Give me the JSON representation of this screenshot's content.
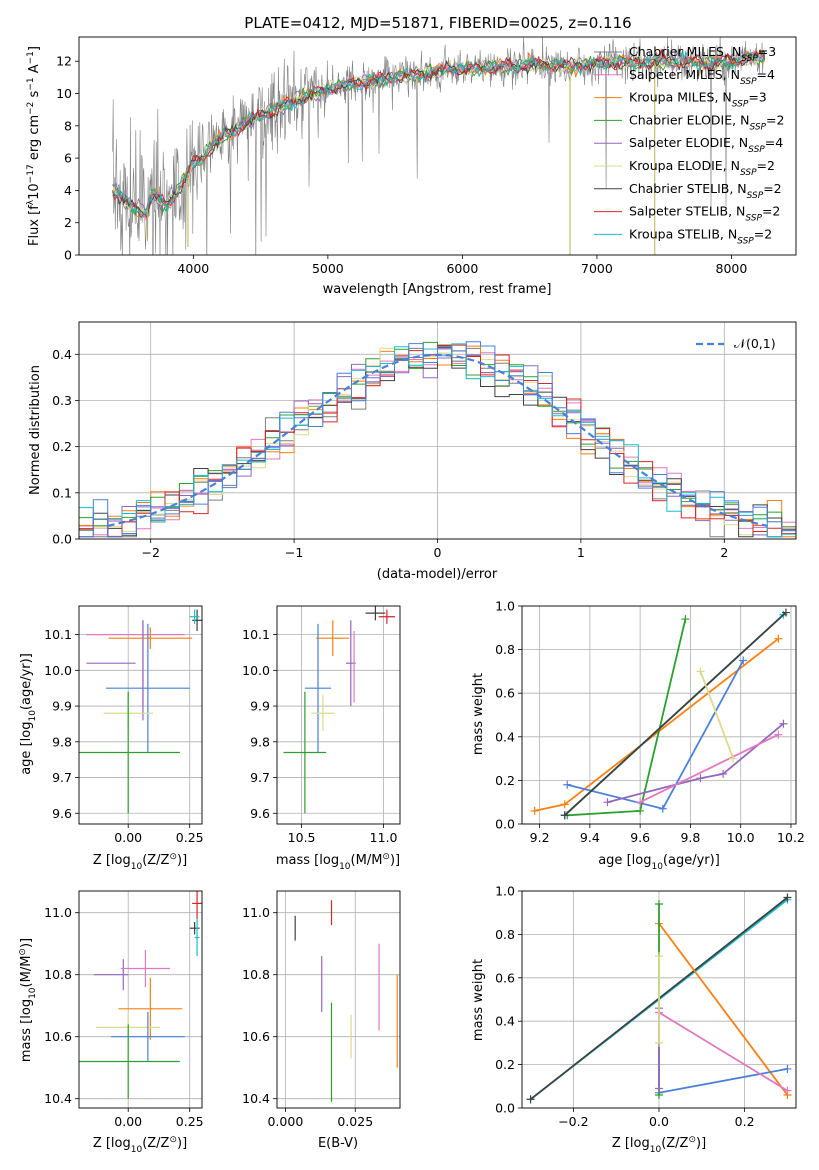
{
  "chart_data": [
    {
      "id": "spectrum",
      "type": "line",
      "title": "PLATE=0412, MJD=51871, FIBERID=0025, z=0.116",
      "xlabel": "wavelength [Angstrom, rest frame]",
      "ylabel_parts": [
        "Flux [f",
        "λ",
        "10",
        "−17",
        " erg cm",
        "−2",
        " s",
        "−1",
        " A",
        "−1",
        "]"
      ],
      "xlim": [
        3150,
        8480
      ],
      "ylim": [
        0,
        13.5
      ],
      "xticks": [
        4000,
        5000,
        6000,
        7000,
        8000
      ],
      "yticks": [
        0,
        2,
        4,
        6,
        8,
        10,
        12
      ],
      "grid": false,
      "legend_position": "right",
      "observed_color": "#808080",
      "series": [
        {
          "name": "Chabrier MILES",
          "n_ssp": 3,
          "color": "#7f7f7f"
        },
        {
          "name": "Salpeter MILES",
          "n_ssp": 4,
          "color": "#e377c2"
        },
        {
          "name": "Kroupa MILES",
          "n_ssp": 3,
          "color": "#ff7f0e"
        },
        {
          "name": "Chabrier ELODIE",
          "n_ssp": 2,
          "color": "#2ca02c"
        },
        {
          "name": "Salpeter ELODIE",
          "n_ssp": 4,
          "color": "#9467bd"
        },
        {
          "name": "Kroupa ELODIE",
          "n_ssp": 2,
          "color": "#dbdb8d"
        },
        {
          "name": "Chabrier STELIB",
          "n_ssp": 2,
          "color": "#404040"
        },
        {
          "name": "Salpeter STELIB",
          "n_ssp": 2,
          "color": "#d62728"
        },
        {
          "name": "Kroupa STELIB",
          "n_ssp": 2,
          "color": "#17becf"
        }
      ],
      "continuum_points": [
        [
          3400,
          4.0
        ],
        [
          3550,
          3.0
        ],
        [
          3650,
          2.6
        ],
        [
          3700,
          3.8
        ],
        [
          3800,
          3.0
        ],
        [
          3900,
          4.2
        ],
        [
          4000,
          5.6
        ],
        [
          4200,
          7.2
        ],
        [
          4500,
          8.7
        ],
        [
          4800,
          9.7
        ],
        [
          5000,
          10.3
        ],
        [
          5300,
          10.8
        ],
        [
          5600,
          11.1
        ],
        [
          5900,
          11.5
        ],
        [
          6200,
          11.6
        ],
        [
          6500,
          11.8
        ],
        [
          6800,
          11.7
        ],
        [
          7100,
          11.9
        ],
        [
          7500,
          12.0
        ],
        [
          7900,
          11.9
        ],
        [
          8250,
          12.3
        ]
      ],
      "spectrum_end": 8250
    },
    {
      "id": "residuals",
      "type": "histogram",
      "xlabel": "(data-model)/error",
      "ylabel": "Normed distribution",
      "xlim": [
        -2.5,
        2.5
      ],
      "ylim": [
        0,
        0.47
      ],
      "xticks": [
        -2,
        -1,
        0,
        1,
        2
      ],
      "yticks": [
        0.0,
        0.1,
        0.2,
        0.3,
        0.4
      ],
      "grid": true,
      "legend": [
        {
          "label": "𝒩(0,1)",
          "color": "#4a80d9",
          "style": "dashed"
        }
      ],
      "legend_position": "top-right",
      "bin_width": 0.1,
      "gaussian": {
        "mean": 0,
        "sigma": 1
      }
    },
    {
      "id": "age_vs_Z",
      "type": "errorbar",
      "xlabel_parts": [
        "Z [log",
        "10",
        "(Z/Z",
        "⊙",
        ")]"
      ],
      "ylabel_parts": [
        "age  [log",
        "10",
        "(age/yr)]"
      ],
      "xlim": [
        -0.2,
        0.3
      ],
      "ylim": [
        9.57,
        10.18
      ],
      "xticks": [
        0.0,
        0.25
      ],
      "yticks": [
        9.6,
        9.7,
        9.8,
        9.9,
        10.0,
        10.1
      ],
      "grid": true,
      "points": [
        {
          "x": 0.28,
          "xerr": 0.02,
          "y": 10.14,
          "yerr": 0.03,
          "color": "#404040"
        },
        {
          "x": 0.27,
          "xerr": 0.02,
          "y": 10.15,
          "yerr": 0.02,
          "color": "#17becf"
        },
        {
          "x": 0.03,
          "xerr": 0.2,
          "y": 10.1,
          "yerr": 0.0,
          "color": "#e377c2"
        },
        {
          "x": 0.09,
          "xerr": 0.17,
          "y": 10.09,
          "yerr": 0.03,
          "color": "#ff7f0e"
        },
        {
          "x": 0.06,
          "xerr": 0.0,
          "y": 10.02,
          "yerr": 0.12,
          "color": "#e377c2"
        },
        {
          "x": 0.06,
          "xerr": 0.0,
          "y": 10.0,
          "yerr": 0.14,
          "color": "#9467bd"
        },
        {
          "x": -0.07,
          "xerr": 0.1,
          "y": 10.02,
          "yerr": 0.0,
          "color": "#9467bd"
        },
        {
          "x": 0.08,
          "xerr": 0.17,
          "y": 9.95,
          "yerr": 0.18,
          "color": "#4a80d9"
        },
        {
          "x": 0.0,
          "xerr": 0.1,
          "y": 9.88,
          "yerr": 0.06,
          "color": "#dbdb8d"
        },
        {
          "x": 0.0,
          "xerr": 0.21,
          "y": 9.77,
          "yerr": 0.17,
          "color": "#2ca02c"
        }
      ]
    },
    {
      "id": "age_vs_mass",
      "type": "errorbar",
      "xlabel_parts": [
        "mass [log",
        "10",
        "(M/M",
        "⊙",
        ")]"
      ],
      "xlim": [
        10.35,
        11.1
      ],
      "ylim": [
        9.57,
        10.18
      ],
      "xticks": [
        10.5,
        11.0
      ],
      "yticks": [
        9.6,
        9.7,
        9.8,
        9.9,
        10.0,
        10.1
      ],
      "grid": true,
      "points": [
        {
          "x": 10.95,
          "xerr": 0.06,
          "y": 10.16,
          "yerr": 0.02,
          "color": "#404040"
        },
        {
          "x": 11.02,
          "xerr": 0.05,
          "y": 10.15,
          "yerr": 0.02,
          "color": "#d62728"
        },
        {
          "x": 10.69,
          "xerr": 0.1,
          "y": 10.09,
          "yerr": 0.05,
          "color": "#ff7f0e"
        },
        {
          "x": 10.8,
          "xerr": 0.03,
          "y": 10.02,
          "yerr": 0.12,
          "color": "#9467bd"
        },
        {
          "x": 10.82,
          "xerr": 0.0,
          "y": 10.01,
          "yerr": 0.1,
          "color": "#e377c2"
        },
        {
          "x": 10.6,
          "xerr": 0.08,
          "y": 9.95,
          "yerr": 0.18,
          "color": "#4a80d9"
        },
        {
          "x": 10.63,
          "xerr": 0.07,
          "y": 9.88,
          "yerr": 0.05,
          "color": "#dbdb8d"
        },
        {
          "x": 10.52,
          "xerr": 0.13,
          "y": 9.77,
          "yerr": 0.17,
          "color": "#2ca02c"
        }
      ]
    },
    {
      "id": "weight_vs_age",
      "type": "line",
      "xlabel_parts": [
        "age  [log",
        "10",
        "(age/yr)]"
      ],
      "ylabel": "mass weight",
      "xlim": [
        9.13,
        10.22
      ],
      "ylim": [
        0,
        1.0
      ],
      "xticks": [
        9.2,
        9.4,
        9.6,
        9.8,
        10.0,
        10.2
      ],
      "yticks": [
        0.0,
        0.2,
        0.4,
        0.6,
        0.8,
        1.0
      ],
      "grid": true,
      "series": [
        {
          "color": "#ff7f0e",
          "points": [
            [
              9.18,
              0.06
            ],
            [
              9.3,
              0.09
            ],
            [
              10.15,
              0.85
            ]
          ]
        },
        {
          "color": "#4a80d9",
          "points": [
            [
              9.31,
              0.18
            ],
            [
              9.69,
              0.07
            ],
            [
              10.01,
              0.75
            ]
          ]
        },
        {
          "color": "#2ca02c",
          "points": [
            [
              9.31,
              0.04
            ],
            [
              9.6,
              0.06
            ],
            [
              9.78,
              0.94
            ]
          ]
        },
        {
          "color": "#17becf",
          "points": [
            [
              9.3,
              0.04
            ],
            [
              10.17,
              0.96
            ]
          ]
        },
        {
          "color": "#404040",
          "points": [
            [
              9.3,
              0.04
            ],
            [
              10.18,
              0.97
            ]
          ]
        },
        {
          "color": "#9467bd",
          "points": [
            [
              9.47,
              0.1
            ],
            [
              9.84,
              0.21
            ],
            [
              9.93,
              0.23
            ],
            [
              10.17,
              0.46
            ]
          ]
        },
        {
          "color": "#e377c2",
          "points": [
            [
              9.6,
              0.1
            ],
            [
              10.15,
              0.41
            ]
          ]
        },
        {
          "color": "#dbdb8d",
          "points": [
            [
              9.84,
              0.7
            ],
            [
              9.97,
              0.3
            ]
          ]
        }
      ]
    },
    {
      "id": "mass_vs_Z",
      "type": "errorbar",
      "xlabel_parts": [
        "Z [log",
        "10",
        "(Z/Z",
        "⊙",
        ")]"
      ],
      "ylabel_parts": [
        "mass [log",
        "10",
        "(M/M",
        "⊙",
        ")]"
      ],
      "xlim": [
        -0.2,
        0.3
      ],
      "ylim": [
        10.37,
        11.07
      ],
      "xticks": [
        0.0,
        0.25
      ],
      "yticks": [
        10.4,
        10.6,
        10.8,
        11.0
      ],
      "grid": true,
      "points": [
        {
          "x": 0.28,
          "xerr": 0.02,
          "y": 11.03,
          "yerr": 0.05,
          "color": "#d62728"
        },
        {
          "x": 0.27,
          "xerr": 0.02,
          "y": 10.95,
          "yerr": 0.02,
          "color": "#404040"
        },
        {
          "x": 0.28,
          "xerr": 0.01,
          "y": 10.92,
          "yerr": 0.06,
          "color": "#17becf"
        },
        {
          "x": -0.02,
          "xerr": 0.0,
          "y": 10.8,
          "yerr": 0.05,
          "color": "#9467bd"
        },
        {
          "x": -0.07,
          "xerr": 0.07,
          "y": 10.8,
          "yerr": 0.0,
          "color": "#9467bd"
        },
        {
          "x": 0.07,
          "xerr": 0.1,
          "y": 10.82,
          "yerr": 0.06,
          "color": "#e377c2"
        },
        {
          "x": 0.09,
          "xerr": 0.13,
          "y": 10.69,
          "yerr": 0.1,
          "color": "#ff7f0e"
        },
        {
          "x": 0.0,
          "xerr": 0.13,
          "y": 10.63,
          "yerr": 0.05,
          "color": "#dbdb8d"
        },
        {
          "x": 0.08,
          "xerr": 0.15,
          "y": 10.6,
          "yerr": 0.08,
          "color": "#4a80d9"
        },
        {
          "x": 0.0,
          "xerr": 0.21,
          "y": 10.52,
          "yerr": 0.12,
          "color": "#2ca02c"
        }
      ]
    },
    {
      "id": "mass_vs_EBV",
      "type": "errorbar",
      "xlabel": "E(B-V)",
      "xlim": [
        -0.003,
        0.041
      ],
      "ylim": [
        10.37,
        11.07
      ],
      "xticks": [
        0.0,
        0.025
      ],
      "yticks": [
        10.4,
        10.6,
        10.8,
        11.0
      ],
      "grid": true,
      "points": [
        {
          "x": 0.0165,
          "xerr": 0.0,
          "y": 11.0,
          "yerr": 0.04,
          "color": "#d62728"
        },
        {
          "x": 0.0035,
          "xerr": 0.0,
          "y": 10.95,
          "yerr": 0.04,
          "color": "#404040"
        },
        {
          "x": 0.013,
          "xerr": 0.0,
          "y": 10.77,
          "yerr": 0.09,
          "color": "#9467bd"
        },
        {
          "x": 0.0335,
          "xerr": 0.0,
          "y": 10.76,
          "yerr": 0.14,
          "color": "#e377c2"
        },
        {
          "x": 0.0235,
          "xerr": 0.0,
          "y": 10.6,
          "yerr": 0.07,
          "color": "#dbdb8d"
        },
        {
          "x": 0.0165,
          "xerr": 0.0,
          "y": 10.55,
          "yerr": 0.16,
          "color": "#2ca02c"
        },
        {
          "x": 0.04,
          "xerr": 0.0,
          "y": 10.65,
          "yerr": 0.15,
          "color": "#ff7f0e"
        }
      ]
    },
    {
      "id": "weight_vs_Z",
      "type": "line",
      "xlabel_parts": [
        "Z [log",
        "10",
        "(Z/Z",
        "⊙",
        ")]"
      ],
      "ylabel": "mass weight",
      "xlim": [
        -0.32,
        0.32
      ],
      "ylim": [
        0,
        1.0
      ],
      "xticks": [
        -0.2,
        0.0,
        0.2
      ],
      "yticks": [
        0.0,
        0.2,
        0.4,
        0.6,
        0.8,
        1.0
      ],
      "grid": true,
      "series": [
        {
          "color": "#17becf",
          "points": [
            [
              -0.3,
              0.04
            ],
            [
              0.3,
              0.96
            ]
          ]
        },
        {
          "color": "#404040",
          "points": [
            [
              -0.3,
              0.04
            ],
            [
              0.3,
              0.97
            ]
          ]
        },
        {
          "color": "#ff7f0e",
          "points": [
            [
              0.0,
              0.85
            ],
            [
              0.3,
              0.06
            ]
          ]
        },
        {
          "color": "#4a80d9",
          "points": [
            [
              0.0,
              0.07
            ],
            [
              0.3,
              0.18
            ]
          ]
        },
        {
          "color": "#e377c2",
          "points": [
            [
              0.0,
              0.44
            ],
            [
              0.3,
              0.08
            ]
          ]
        },
        {
          "color": "#2ca02c",
          "points": [
            [
              0.0,
              0.06
            ],
            [
              0.0,
              0.94
            ]
          ]
        },
        {
          "color": "#9467bd",
          "points": [
            [
              0.0,
              0.09
            ],
            [
              0.0,
              0.46
            ]
          ]
        },
        {
          "color": "#dbdb8d",
          "points": [
            [
              0.0,
              0.3
            ],
            [
              0.0,
              0.7
            ]
          ]
        }
      ]
    }
  ]
}
